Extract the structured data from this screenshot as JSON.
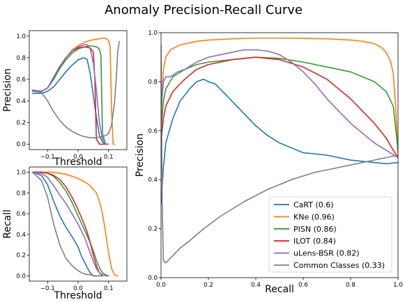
{
  "title": "Anomaly Precision-Recall Curve",
  "colors": {
    "CaRT": "#1f77b4",
    "KNe": "#ff7f0e",
    "PISN": "#2ca02c",
    "ILOT": "#d62728",
    "uLens-BSR": "#9467bd",
    "Common Classes": "#7f7f7f"
  },
  "chart_data": [
    {
      "id": "precision_vs_threshold",
      "type": "line",
      "xlabel": "Threshold",
      "ylabel": "Precision",
      "xlim": [
        -0.16,
        0.16
      ],
      "ylim": [
        -0.05,
        1.05
      ],
      "xticks": [
        -0.1,
        0.0,
        0.1
      ],
      "xtick_labels": [
        "−0.1",
        "0.0",
        "0.1"
      ],
      "yticks": [
        0.0,
        0.2,
        0.4,
        0.6,
        0.8,
        1.0
      ],
      "ytick_labels": [
        "0.0",
        "0.2",
        "0.4",
        "0.6",
        "0.8",
        "1.0"
      ],
      "series": [
        {
          "name": "CaRT",
          "x": [
            -0.15,
            -0.12,
            -0.1,
            -0.08,
            -0.06,
            -0.04,
            -0.02,
            0.0,
            0.02,
            0.03,
            0.04,
            0.05,
            0.06,
            0.07,
            0.08,
            0.09,
            0.1
          ],
          "y": [
            0.47,
            0.47,
            0.49,
            0.53,
            0.6,
            0.67,
            0.73,
            0.78,
            0.8,
            0.78,
            0.65,
            0.45,
            0.25,
            0.08,
            0.02,
            0.0,
            0.0
          ]
        },
        {
          "name": "KNe",
          "x": [
            -0.15,
            -0.12,
            -0.1,
            -0.08,
            -0.06,
            -0.04,
            -0.02,
            0.0,
            0.02,
            0.04,
            0.06,
            0.08,
            0.09,
            0.1,
            0.105,
            0.11,
            0.115,
            0.12
          ],
          "y": [
            0.5,
            0.49,
            0.52,
            0.6,
            0.7,
            0.8,
            0.87,
            0.91,
            0.94,
            0.96,
            0.97,
            0.98,
            0.98,
            0.96,
            0.9,
            0.3,
            0.0,
            0.0
          ]
        },
        {
          "name": "PISN",
          "x": [
            -0.15,
            -0.12,
            -0.1,
            -0.08,
            -0.06,
            -0.04,
            -0.02,
            0.0,
            0.02,
            0.04,
            0.06,
            0.07,
            0.075,
            0.08,
            0.09,
            0.1
          ],
          "y": [
            0.5,
            0.49,
            0.52,
            0.6,
            0.7,
            0.78,
            0.84,
            0.88,
            0.9,
            0.91,
            0.9,
            0.88,
            0.82,
            0.1,
            0.0,
            0.0
          ]
        },
        {
          "name": "ILOT",
          "x": [
            -0.15,
            -0.12,
            -0.1,
            -0.08,
            -0.06,
            -0.04,
            -0.02,
            0.0,
            0.02,
            0.04,
            0.05,
            0.055,
            0.06,
            0.07,
            0.09,
            0.1
          ],
          "y": [
            0.5,
            0.49,
            0.52,
            0.62,
            0.72,
            0.8,
            0.86,
            0.89,
            0.9,
            0.89,
            0.85,
            0.6,
            0.05,
            0.0,
            0.0,
            0.0
          ]
        },
        {
          "name": "uLens-BSR",
          "x": [
            -0.15,
            -0.12,
            -0.1,
            -0.08,
            -0.06,
            -0.04,
            -0.02,
            0.0,
            0.02,
            0.03,
            0.04,
            0.05,
            0.06,
            0.07,
            0.08,
            0.09,
            0.1
          ],
          "y": [
            0.5,
            0.49,
            0.52,
            0.62,
            0.72,
            0.8,
            0.86,
            0.9,
            0.92,
            0.92,
            0.88,
            0.75,
            0.5,
            0.2,
            0.05,
            0.0,
            0.0
          ]
        },
        {
          "name": "Common Classes",
          "x": [
            -0.15,
            -0.12,
            -0.1,
            -0.08,
            -0.06,
            -0.04,
            -0.02,
            0.0,
            0.02,
            0.04,
            0.06,
            0.08,
            0.09,
            0.1,
            0.11,
            0.12,
            0.125,
            0.13,
            0.135
          ],
          "y": [
            0.49,
            0.48,
            0.4,
            0.3,
            0.22,
            0.16,
            0.12,
            0.09,
            0.07,
            0.06,
            0.06,
            0.07,
            0.08,
            0.1,
            0.18,
            0.4,
            0.6,
            0.85,
            0.95
          ]
        }
      ]
    },
    {
      "id": "recall_vs_threshold",
      "type": "line",
      "xlabel": "Threshold",
      "ylabel": "Recall",
      "xlim": [
        -0.16,
        0.16
      ],
      "ylim": [
        -0.05,
        1.05
      ],
      "xticks": [
        -0.1,
        0.0,
        0.1
      ],
      "xtick_labels": [
        "−0.1",
        "0.0",
        "0.1"
      ],
      "yticks": [
        0.0,
        0.2,
        0.4,
        0.6,
        0.8,
        1.0
      ],
      "ytick_labels": [
        "0.0",
        "0.2",
        "0.4",
        "0.6",
        "0.8",
        "1.0"
      ],
      "series": [
        {
          "name": "CaRT",
          "x": [
            -0.15,
            -0.12,
            -0.1,
            -0.08,
            -0.06,
            -0.04,
            -0.02,
            0.0,
            0.01,
            0.02,
            0.03,
            0.04,
            0.05,
            0.06
          ],
          "y": [
            1.0,
            0.97,
            0.88,
            0.72,
            0.58,
            0.47,
            0.38,
            0.28,
            0.2,
            0.14,
            0.08,
            0.03,
            0.0,
            0.0
          ]
        },
        {
          "name": "KNe",
          "x": [
            -0.15,
            -0.12,
            -0.1,
            -0.08,
            -0.06,
            -0.04,
            -0.02,
            0.0,
            0.02,
            0.04,
            0.06,
            0.07,
            0.08,
            0.09,
            0.1,
            0.11,
            0.12,
            0.13
          ],
          "y": [
            1.0,
            1.0,
            1.0,
            1.0,
            0.99,
            0.98,
            0.96,
            0.94,
            0.91,
            0.87,
            0.8,
            0.72,
            0.6,
            0.42,
            0.22,
            0.07,
            0.01,
            0.0
          ]
        },
        {
          "name": "PISN",
          "x": [
            -0.15,
            -0.12,
            -0.1,
            -0.08,
            -0.06,
            -0.04,
            -0.02,
            0.0,
            0.02,
            0.04,
            0.05,
            0.06,
            0.07,
            0.08,
            0.09,
            0.1
          ],
          "y": [
            1.0,
            1.0,
            0.99,
            0.96,
            0.9,
            0.82,
            0.71,
            0.58,
            0.45,
            0.32,
            0.24,
            0.15,
            0.08,
            0.03,
            0.01,
            0.0
          ]
        },
        {
          "name": "ILOT",
          "x": [
            -0.15,
            -0.12,
            -0.1,
            -0.08,
            -0.06,
            -0.04,
            -0.02,
            0.0,
            0.02,
            0.03,
            0.04,
            0.05,
            0.06,
            0.07,
            0.08
          ],
          "y": [
            1.0,
            1.0,
            0.99,
            0.97,
            0.93,
            0.86,
            0.76,
            0.64,
            0.5,
            0.42,
            0.32,
            0.2,
            0.1,
            0.03,
            0.0
          ]
        },
        {
          "name": "uLens-BSR",
          "x": [
            -0.15,
            -0.12,
            -0.1,
            -0.08,
            -0.06,
            -0.04,
            -0.02,
            0.0,
            0.02,
            0.03,
            0.04,
            0.05,
            0.06,
            0.07,
            0.08,
            0.09,
            0.1
          ],
          "y": [
            1.0,
            0.99,
            0.95,
            0.87,
            0.78,
            0.7,
            0.6,
            0.5,
            0.38,
            0.3,
            0.22,
            0.14,
            0.07,
            0.03,
            0.01,
            0.0,
            0.0
          ]
        },
        {
          "name": "Common Classes",
          "x": [
            -0.15,
            -0.12,
            -0.1,
            -0.08,
            -0.06,
            -0.04,
            -0.02,
            0.0,
            0.02,
            0.04,
            0.06,
            0.08
          ],
          "y": [
            1.0,
            0.92,
            0.76,
            0.5,
            0.3,
            0.17,
            0.1,
            0.05,
            0.02,
            0.01,
            0.0,
            0.0
          ]
        }
      ]
    },
    {
      "id": "precision_vs_recall",
      "type": "line",
      "xlabel": "Recall",
      "ylabel": "Precision",
      "xlim": [
        0.0,
        1.0
      ],
      "ylim": [
        0.0,
        1.0
      ],
      "xticks": [
        0.0,
        0.2,
        0.4,
        0.6,
        0.8,
        1.0
      ],
      "xtick_labels": [
        "0.0",
        "0.2",
        "0.4",
        "0.6",
        "0.8",
        "1.0"
      ],
      "yticks": [
        0.0,
        0.2,
        0.4,
        0.6,
        0.8,
        1.0
      ],
      "ytick_labels": [
        "0.0",
        "0.2",
        "0.4",
        "0.6",
        "0.8",
        "1.0"
      ],
      "legend": {
        "placement": "lower-right",
        "entries": [
          "CaRT (0.6)",
          "KNe (0.96)",
          "PISN (0.86)",
          "ILOT (0.84)",
          "uLens-BSR (0.82)",
          "Common Classes (0.33)"
        ]
      },
      "series": [
        {
          "name": "CaRT",
          "x": [
            0.0,
            0.01,
            0.02,
            0.05,
            0.08,
            0.12,
            0.15,
            0.18,
            0.2,
            0.23,
            0.26,
            0.3,
            0.35,
            0.4,
            0.45,
            0.5,
            0.55,
            0.6,
            0.7,
            0.8,
            0.9,
            0.95,
            1.0
          ],
          "y": [
            0.3,
            0.45,
            0.55,
            0.65,
            0.72,
            0.77,
            0.8,
            0.81,
            0.8,
            0.79,
            0.76,
            0.72,
            0.67,
            0.62,
            0.58,
            0.55,
            0.53,
            0.51,
            0.5,
            0.48,
            0.47,
            0.465,
            0.47
          ]
        },
        {
          "name": "KNe",
          "x": [
            0.0,
            0.01,
            0.02,
            0.04,
            0.08,
            0.15,
            0.2,
            0.3,
            0.4,
            0.5,
            0.6,
            0.7,
            0.8,
            0.85,
            0.9,
            0.93,
            0.95,
            0.97,
            0.98,
            0.99,
            1.0
          ],
          "y": [
            0.65,
            0.85,
            0.9,
            0.93,
            0.95,
            0.965,
            0.97,
            0.975,
            0.978,
            0.978,
            0.977,
            0.975,
            0.97,
            0.965,
            0.955,
            0.94,
            0.92,
            0.88,
            0.83,
            0.7,
            0.5
          ]
        },
        {
          "name": "PISN",
          "x": [
            0.0,
            0.01,
            0.02,
            0.05,
            0.1,
            0.15,
            0.2,
            0.3,
            0.4,
            0.5,
            0.6,
            0.7,
            0.8,
            0.9,
            0.95,
            0.98,
            1.0
          ],
          "y": [
            0.6,
            0.72,
            0.77,
            0.82,
            0.85,
            0.87,
            0.88,
            0.89,
            0.9,
            0.895,
            0.88,
            0.86,
            0.84,
            0.8,
            0.76,
            0.7,
            0.52
          ]
        },
        {
          "name": "ILOT",
          "x": [
            0.0,
            0.01,
            0.02,
            0.05,
            0.1,
            0.15,
            0.2,
            0.3,
            0.4,
            0.5,
            0.6,
            0.7,
            0.75,
            0.8,
            0.85,
            0.9,
            0.95,
            0.98,
            1.0
          ],
          "y": [
            0.55,
            0.65,
            0.7,
            0.76,
            0.81,
            0.85,
            0.87,
            0.89,
            0.9,
            0.89,
            0.86,
            0.81,
            0.77,
            0.73,
            0.68,
            0.63,
            0.57,
            0.52,
            0.49
          ]
        },
        {
          "name": "uLens-BSR",
          "x": [
            0.0,
            0.01,
            0.02,
            0.04,
            0.07,
            0.1,
            0.15,
            0.2,
            0.3,
            0.35,
            0.4,
            0.45,
            0.5,
            0.55,
            0.6,
            0.65,
            0.7,
            0.75,
            0.8,
            0.85,
            0.9,
            0.95,
            1.0
          ],
          "y": [
            0.68,
            0.8,
            0.82,
            0.82,
            0.84,
            0.85,
            0.88,
            0.9,
            0.92,
            0.93,
            0.93,
            0.925,
            0.91,
            0.88,
            0.84,
            0.79,
            0.73,
            0.68,
            0.63,
            0.59,
            0.55,
            0.52,
            0.49
          ]
        },
        {
          "name": "Common Classes",
          "x": [
            0.0,
            0.005,
            0.01,
            0.02,
            0.03,
            0.05,
            0.08,
            0.12,
            0.18,
            0.25,
            0.35,
            0.45,
            0.55,
            0.65,
            0.75,
            0.85,
            0.95,
            1.0
          ],
          "y": [
            0.95,
            0.3,
            0.07,
            0.06,
            0.07,
            0.09,
            0.12,
            0.15,
            0.2,
            0.25,
            0.31,
            0.36,
            0.4,
            0.43,
            0.45,
            0.47,
            0.49,
            0.5
          ]
        }
      ]
    }
  ]
}
